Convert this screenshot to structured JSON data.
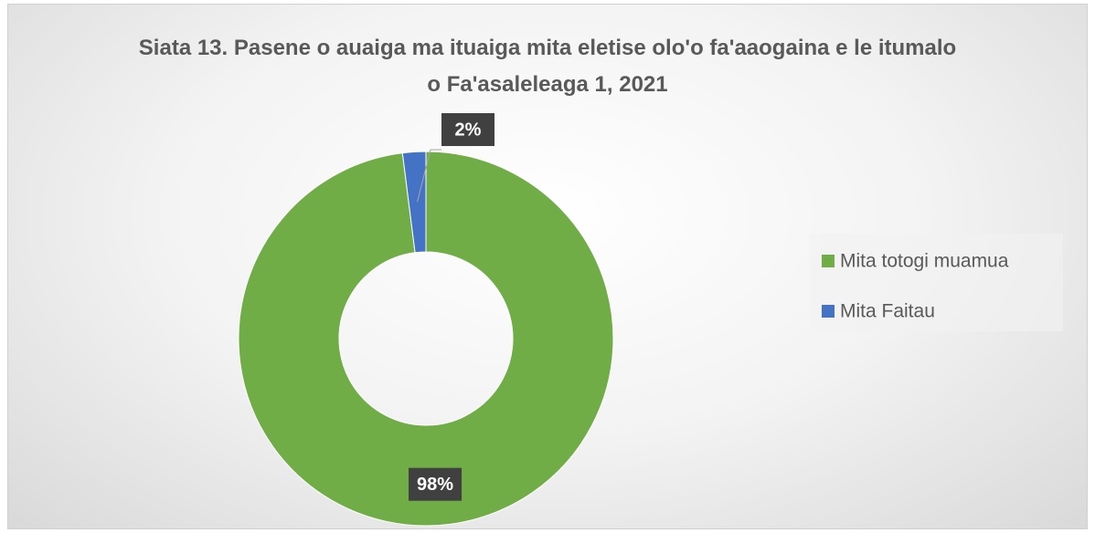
{
  "chart_data": {
    "type": "donut",
    "title": "Siata 13. Pasene o auaiga ma ituaiga mita eletise olo'o fa'aaogaina e le itumalo o Fa'asaleleaga 1, 2021",
    "categories": [
      "Mita totogi muamua",
      "Mita Faitau"
    ],
    "values": [
      98,
      2
    ],
    "value_labels": [
      "98%",
      "2%"
    ],
    "colors": [
      "#70ad47",
      "#4472c4"
    ],
    "legend": "right"
  }
}
